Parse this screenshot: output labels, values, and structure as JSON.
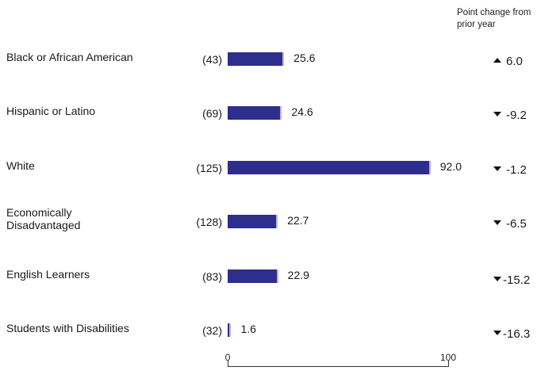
{
  "chart_data": {
    "type": "bar",
    "orientation": "horizontal",
    "change_header": "Point change from prior year",
    "categories": [
      "Black or African American",
      "Hispanic or Latino",
      "White",
      "Economically Disadvantaged",
      "English Learners",
      "Students with Disabilities"
    ],
    "counts": [
      "(43)",
      "(69)",
      "(125)",
      "(128)",
      "(83)",
      "(32)"
    ],
    "values": [
      25.6,
      24.6,
      92.0,
      22.7,
      22.9,
      1.6
    ],
    "value_labels": [
      "25.6",
      "24.6",
      "92.0",
      "22.7",
      "22.9",
      "1.6"
    ],
    "changes": [
      6.0,
      -9.2,
      -1.2,
      -6.5,
      -15.2,
      -16.3
    ],
    "change_labels": [
      "6.0",
      "-9.2",
      "-1.2",
      "-6.5",
      "-15.2",
      "-16.3"
    ],
    "change_directions": [
      "up",
      "down",
      "down",
      "down",
      "down",
      "down"
    ],
    "xlim": [
      0,
      100
    ],
    "x_ticks": [
      "0",
      "100"
    ],
    "bar_color": "#2e2e8c",
    "grid": false
  }
}
